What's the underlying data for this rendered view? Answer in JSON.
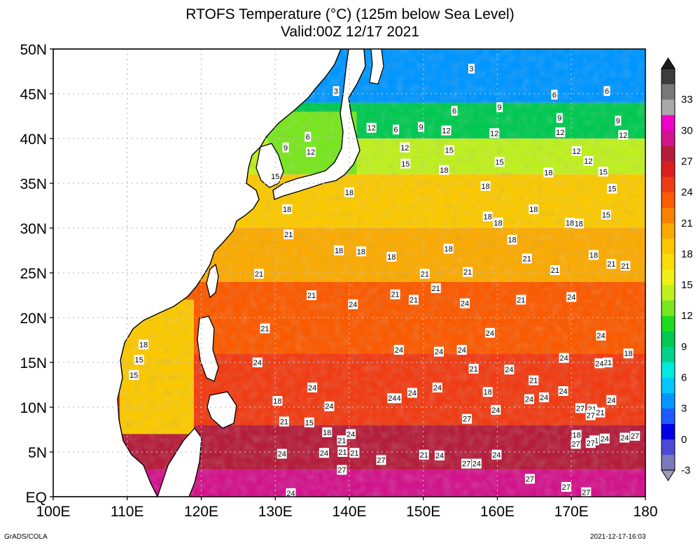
{
  "title": {
    "line1": "RTOFS Temperature (°C) (125m below Sea Level)",
    "line2": "Valid:00Z 12/17 2021"
  },
  "footer": {
    "left": "GrADS/COLA",
    "right": "2021-12-17-16:03"
  },
  "map_data": {
    "type": "filled-contour-map",
    "variable": "Temperature",
    "lon_range": [
      100,
      180
    ],
    "lat_range": [
      0,
      50
    ],
    "lon_ticks": [
      "100E",
      "110E",
      "120E",
      "130E",
      "140E",
      "150E",
      "160E",
      "170E",
      "180"
    ],
    "lat_ticks": [
      "EQ",
      "5N",
      "10N",
      "15N",
      "20N",
      "25N",
      "30N",
      "35N",
      "40N",
      "45N",
      "50N"
    ],
    "colorbar": {
      "labels": [
        "-3",
        "0",
        "3",
        "6",
        "9",
        "12",
        "15",
        "18",
        "21",
        "24",
        "27",
        "30",
        "33"
      ],
      "bins": [
        {
          "from": -3,
          "to": -1.5,
          "color": "#7a7ab8"
        },
        {
          "from": -1.5,
          "to": 0,
          "color": "#4b4bd8"
        },
        {
          "from": 0,
          "to": 1.5,
          "color": "#0000e6"
        },
        {
          "from": 1.5,
          "to": 3,
          "color": "#1e5aff"
        },
        {
          "from": 3,
          "to": 4.5,
          "color": "#0096ff"
        },
        {
          "from": 4.5,
          "to": 6,
          "color": "#00c8ff"
        },
        {
          "from": 6,
          "to": 7.5,
          "color": "#00ebdc"
        },
        {
          "from": 7.5,
          "to": 9,
          "color": "#00d28c"
        },
        {
          "from": 9,
          "to": 10.5,
          "color": "#00c850"
        },
        {
          "from": 10.5,
          "to": 12,
          "color": "#1edc1e"
        },
        {
          "from": 12,
          "to": 13.5,
          "color": "#78e61e"
        },
        {
          "from": 13.5,
          "to": 15,
          "color": "#bef01e"
        },
        {
          "from": 15,
          "to": 16.5,
          "color": "#f0f014"
        },
        {
          "from": 16.5,
          "to": 18,
          "color": "#fadc0a"
        },
        {
          "from": 18,
          "to": 19.5,
          "color": "#fac800"
        },
        {
          "from": 19.5,
          "to": 21,
          "color": "#faaa00"
        },
        {
          "from": 21,
          "to": 22.5,
          "color": "#fa8200"
        },
        {
          "from": 22.5,
          "to": 24,
          "color": "#fa5a00"
        },
        {
          "from": 24,
          "to": 25.5,
          "color": "#f03c14"
        },
        {
          "from": 25.5,
          "to": 27,
          "color": "#dc1e1e"
        },
        {
          "from": 27,
          "to": 28.5,
          "color": "#b41e3c"
        },
        {
          "from": 28.5,
          "to": 30,
          "color": "#d2148c"
        },
        {
          "from": 30,
          "to": 31.5,
          "color": "#f000c8"
        },
        {
          "from": 31.5,
          "to": 33,
          "color": "#aaaaaa"
        },
        {
          "from": 33,
          "to": 34.5,
          "color": "#787878"
        },
        {
          "from": 34.5,
          "to": 36,
          "color": "#3c3c3c"
        }
      ]
    },
    "regions": [
      {
        "name": "northern-cold-band",
        "lat_from": 44,
        "lat_to": 50,
        "value": 3
      },
      {
        "name": "subarctic-front",
        "lat_from": 40,
        "lat_to": 44,
        "value": 9
      },
      {
        "name": "transition-zone",
        "lat_from": 36,
        "lat_to": 40,
        "value": 14
      },
      {
        "name": "subtropical-north",
        "lat_from": 30,
        "lat_to": 36,
        "value": 18
      },
      {
        "name": "subtropical-mid",
        "lat_from": 24,
        "lat_to": 30,
        "value": 20
      },
      {
        "name": "subtropical-south",
        "lat_from": 16,
        "lat_to": 24,
        "value": 23
      },
      {
        "name": "tropical-band",
        "lat_from": 8,
        "lat_to": 16,
        "value": 25
      },
      {
        "name": "equatorial-band",
        "lat_from": 3,
        "lat_to": 8,
        "value": 27
      },
      {
        "name": "warm-pool",
        "lat_from": 0,
        "lat_to": 3,
        "value": 29.5
      },
      {
        "name": "south-china-sea",
        "lon_from": 109,
        "lon_to": 119,
        "lat_from": 7,
        "lat_to": 22,
        "value": 19
      },
      {
        "name": "sea-of-japan",
        "lon_from": 129,
        "lon_to": 141,
        "lat_from": 36,
        "lat_to": 43,
        "value": 12
      }
    ],
    "contour_labels": [
      {
        "text": "3",
        "lon": 156.5,
        "lat": 47.8
      },
      {
        "text": "3",
        "lon": 138.2,
        "lat": 45.3
      },
      {
        "text": "6",
        "lon": 167.7,
        "lat": 44.9
      },
      {
        "text": "6",
        "lon": 174.8,
        "lat": 45.3
      },
      {
        "text": "6",
        "lon": 154.2,
        "lat": 43.1
      },
      {
        "text": "6",
        "lon": 146.3,
        "lat": 41.0
      },
      {
        "text": "6",
        "lon": 134.4,
        "lat": 40.2
      },
      {
        "text": "9",
        "lon": 160.3,
        "lat": 43.5
      },
      {
        "text": "9",
        "lon": 168.4,
        "lat": 42.3
      },
      {
        "text": "9",
        "lon": 176.3,
        "lat": 42.0
      },
      {
        "text": "9",
        "lon": 149.7,
        "lat": 41.3
      },
      {
        "text": "9",
        "lon": 131.4,
        "lat": 39.0
      },
      {
        "text": "12",
        "lon": 143.0,
        "lat": 41.2
      },
      {
        "text": "12",
        "lon": 153.1,
        "lat": 40.9
      },
      {
        "text": "12",
        "lon": 159.6,
        "lat": 40.6
      },
      {
        "text": "12",
        "lon": 168.5,
        "lat": 40.7
      },
      {
        "text": "12",
        "lon": 177.0,
        "lat": 40.4
      },
      {
        "text": "12",
        "lon": 147.5,
        "lat": 39.0
      },
      {
        "text": "12",
        "lon": 134.8,
        "lat": 38.5
      },
      {
        "text": "12",
        "lon": 170.7,
        "lat": 38.6
      },
      {
        "text": "12",
        "lon": 172.3,
        "lat": 37.5
      },
      {
        "text": "15",
        "lon": 153.5,
        "lat": 38.7
      },
      {
        "text": "15",
        "lon": 147.6,
        "lat": 37.2
      },
      {
        "text": "15",
        "lon": 160.3,
        "lat": 37.4
      },
      {
        "text": "15",
        "lon": 174.3,
        "lat": 36.3
      },
      {
        "text": "15",
        "lon": 130.0,
        "lat": 35.8
      },
      {
        "text": "15",
        "lon": 175.5,
        "lat": 34.4
      },
      {
        "text": "15",
        "lon": 174.7,
        "lat": 31.5
      },
      {
        "text": "15",
        "lon": 111.6,
        "lat": 15.3
      },
      {
        "text": "15",
        "lon": 110.9,
        "lat": 13.6
      },
      {
        "text": "15",
        "lon": 134.6,
        "lat": 8.3
      },
      {
        "text": "18",
        "lon": 152.8,
        "lat": 36.5
      },
      {
        "text": "18",
        "lon": 166.9,
        "lat": 36.2
      },
      {
        "text": "18",
        "lon": 158.4,
        "lat": 34.7
      },
      {
        "text": "18",
        "lon": 140.0,
        "lat": 34.0
      },
      {
        "text": "18",
        "lon": 164.9,
        "lat": 32.1
      },
      {
        "text": "18",
        "lon": 131.6,
        "lat": 32.1
      },
      {
        "text": "18",
        "lon": 158.7,
        "lat": 31.3
      },
      {
        "text": "18",
        "lon": 160.1,
        "lat": 30.6
      },
      {
        "text": "18",
        "lon": 169.8,
        "lat": 30.6
      },
      {
        "text": "18",
        "lon": 171.0,
        "lat": 30.5
      },
      {
        "text": "18",
        "lon": 162.0,
        "lat": 28.7
      },
      {
        "text": "18",
        "lon": 153.4,
        "lat": 27.7
      },
      {
        "text": "18",
        "lon": 173.0,
        "lat": 27.0
      },
      {
        "text": "18",
        "lon": 138.6,
        "lat": 27.5
      },
      {
        "text": "18",
        "lon": 141.6,
        "lat": 27.4
      },
      {
        "text": "18",
        "lon": 145.7,
        "lat": 26.8
      },
      {
        "text": "18",
        "lon": 112.2,
        "lat": 17.0
      },
      {
        "text": "18",
        "lon": 177.7,
        "lat": 16.0
      },
      {
        "text": "18",
        "lon": 130.3,
        "lat": 10.7
      },
      {
        "text": "18",
        "lon": 137.0,
        "lat": 7.2
      },
      {
        "text": "18",
        "lon": 158.7,
        "lat": 11.7
      },
      {
        "text": "18",
        "lon": 170.7,
        "lat": 6.9
      },
      {
        "text": "21",
        "lon": 131.8,
        "lat": 29.3
      },
      {
        "text": "21",
        "lon": 127.8,
        "lat": 24.9
      },
      {
        "text": "21",
        "lon": 164.0,
        "lat": 26.6
      },
      {
        "text": "21",
        "lon": 175.4,
        "lat": 26.0
      },
      {
        "text": "21",
        "lon": 177.3,
        "lat": 25.8
      },
      {
        "text": "21",
        "lon": 150.2,
        "lat": 24.9
      },
      {
        "text": "21",
        "lon": 156.0,
        "lat": 25.1
      },
      {
        "text": "21",
        "lon": 167.8,
        "lat": 25.3
      },
      {
        "text": "21",
        "lon": 151.7,
        "lat": 23.3
      },
      {
        "text": "21",
        "lon": 134.9,
        "lat": 22.5
      },
      {
        "text": "21",
        "lon": 146.2,
        "lat": 22.6
      },
      {
        "text": "21",
        "lon": 148.7,
        "lat": 22.0
      },
      {
        "text": "21",
        "lon": 163.2,
        "lat": 22.0
      },
      {
        "text": "21",
        "lon": 128.6,
        "lat": 18.8
      },
      {
        "text": "21",
        "lon": 174.9,
        "lat": 15.0
      },
      {
        "text": "21",
        "lon": 156.8,
        "lat": 14.3
      },
      {
        "text": "21",
        "lon": 164.9,
        "lat": 13.0
      },
      {
        "text": "21",
        "lon": 172.8,
        "lat": 9.8
      },
      {
        "text": "21",
        "lon": 173.9,
        "lat": 9.4
      },
      {
        "text": "21",
        "lon": 173.1,
        "lat": 6.3
      },
      {
        "text": "21",
        "lon": 131.2,
        "lat": 8.4
      },
      {
        "text": "21",
        "lon": 139.0,
        "lat": 6.3
      },
      {
        "text": "21",
        "lon": 139.1,
        "lat": 5.0
      },
      {
        "text": "21",
        "lon": 140.7,
        "lat": 4.9
      },
      {
        "text": "21",
        "lon": 150.1,
        "lat": 4.7
      },
      {
        "text": "24",
        "lon": 140.5,
        "lat": 21.5
      },
      {
        "text": "24",
        "lon": 155.6,
        "lat": 21.6
      },
      {
        "text": "24",
        "lon": 170.0,
        "lat": 22.3
      },
      {
        "text": "24",
        "lon": 174.0,
        "lat": 18.0
      },
      {
        "text": "24",
        "lon": 159.0,
        "lat": 18.3
      },
      {
        "text": "24",
        "lon": 146.7,
        "lat": 16.4
      },
      {
        "text": "24",
        "lon": 152.1,
        "lat": 16.2
      },
      {
        "text": "24",
        "lon": 155.2,
        "lat": 16.4
      },
      {
        "text": "24",
        "lon": 169.0,
        "lat": 15.5
      },
      {
        "text": "24",
        "lon": 173.8,
        "lat": 14.9
      },
      {
        "text": "24",
        "lon": 127.6,
        "lat": 15.0
      },
      {
        "text": "24",
        "lon": 161.6,
        "lat": 14.2
      },
      {
        "text": "24",
        "lon": 135.0,
        "lat": 12.2
      },
      {
        "text": "24",
        "lon": 151.9,
        "lat": 12.2
      },
      {
        "text": "24",
        "lon": 148.5,
        "lat": 11.6
      },
      {
        "text": "24",
        "lon": 168.9,
        "lat": 11.8
      },
      {
        "text": "24",
        "lon": 166.3,
        "lat": 11.1
      },
      {
        "text": "24",
        "lon": 164.3,
        "lat": 10.9
      },
      {
        "text": "24",
        "lon": 175.4,
        "lat": 10.8
      },
      {
        "text": "24",
        "lon": 146.4,
        "lat": 11.0
      },
      {
        "text": "24",
        "lon": 145.8,
        "lat": 11.0
      },
      {
        "text": "24",
        "lon": 137.3,
        "lat": 10.1
      },
      {
        "text": "24",
        "lon": 159.8,
        "lat": 9.7
      },
      {
        "text": "24",
        "lon": 140.2,
        "lat": 7.0
      },
      {
        "text": "24",
        "lon": 177.2,
        "lat": 6.6
      },
      {
        "text": "24",
        "lon": 174.5,
        "lat": 6.5
      },
      {
        "text": "24",
        "lon": 130.9,
        "lat": 4.8
      },
      {
        "text": "24",
        "lon": 136.6,
        "lat": 4.9
      },
      {
        "text": "24",
        "lon": 152.2,
        "lat": 4.6
      },
      {
        "text": "24",
        "lon": 159.9,
        "lat": 4.7
      },
      {
        "text": "24",
        "lon": 157.2,
        "lat": 3.7
      },
      {
        "text": "24",
        "lon": 132.1,
        "lat": 0.4
      },
      {
        "text": "27",
        "lon": 155.9,
        "lat": 8.7
      },
      {
        "text": "27",
        "lon": 171.2,
        "lat": 9.9
      },
      {
        "text": "27",
        "lon": 172.6,
        "lat": 9.1
      },
      {
        "text": "27",
        "lon": 170.6,
        "lat": 5.9
      },
      {
        "text": "27",
        "lon": 172.6,
        "lat": 6.0
      },
      {
        "text": "27",
        "lon": 178.6,
        "lat": 6.8
      },
      {
        "text": "27",
        "lon": 144.3,
        "lat": 4.1
      },
      {
        "text": "27",
        "lon": 155.8,
        "lat": 3.7
      },
      {
        "text": "27",
        "lon": 139.0,
        "lat": 3.0
      },
      {
        "text": "27",
        "lon": 164.4,
        "lat": 2.0
      },
      {
        "text": "27",
        "lon": 169.3,
        "lat": 1.1
      },
      {
        "text": "27",
        "lon": 172.0,
        "lat": 0.5
      }
    ]
  }
}
